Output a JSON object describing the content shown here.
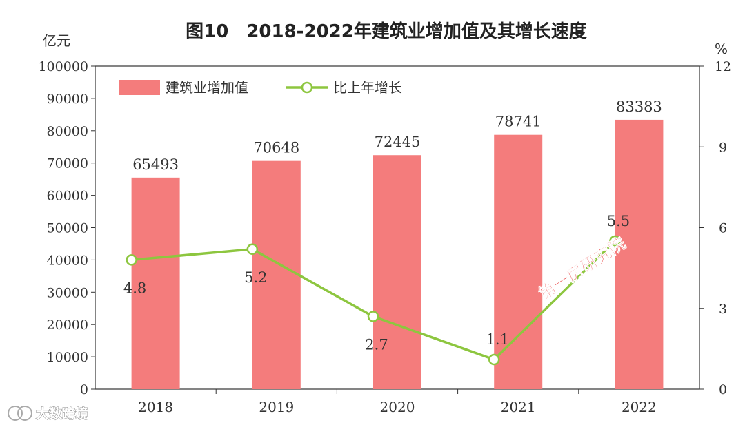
{
  "chart_data": {
    "type": "bar",
    "title": "图10　2018-2022年建筑业增加值及其增长速度",
    "categories": [
      "2018",
      "2019",
      "2020",
      "2021",
      "2022"
    ],
    "left_axis": {
      "unit": "亿元",
      "ylim": [
        0,
        100000
      ],
      "ticks": [
        "0",
        "10000",
        "20000",
        "30000",
        "40000",
        "50000",
        "60000",
        "70000",
        "80000",
        "90000",
        "100000"
      ]
    },
    "right_axis": {
      "unit": "%",
      "ylim": [
        0,
        12
      ],
      "ticks": [
        "0",
        "3",
        "6",
        "9",
        "12"
      ]
    },
    "series": [
      {
        "name": "建筑业增加值",
        "type": "bar",
        "axis": "left",
        "color": "#f47c7c",
        "values": [
          65493,
          70648,
          72445,
          78741,
          83383
        ],
        "labels": [
          "65493",
          "70648",
          "72445",
          "78741",
          "83383"
        ]
      },
      {
        "name": "比上年增长",
        "type": "line",
        "axis": "right",
        "color": "#8dc63f",
        "values": [
          4.8,
          5.2,
          2.7,
          1.1,
          5.5
        ],
        "labels": [
          "4.8",
          "5.2",
          "2.7",
          "1.1",
          "5.5"
        ]
      }
    ],
    "legend_position": "top-left",
    "grid": false
  },
  "watermark": {
    "text": "第一房研究院"
  },
  "logo": {
    "text": "大数跨境"
  }
}
